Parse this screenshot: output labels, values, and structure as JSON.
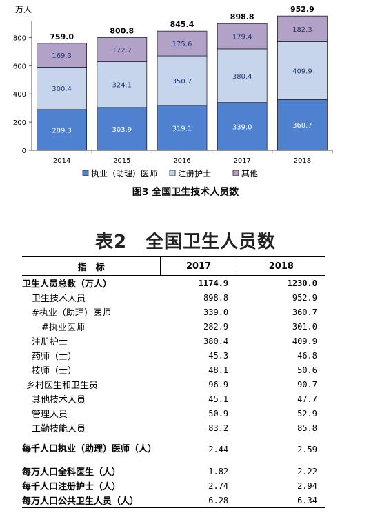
{
  "chart_data": {
    "type": "bar",
    "stacked": true,
    "categories": [
      "2014",
      "2015",
      "2016",
      "2017",
      "2018"
    ],
    "series": [
      {
        "name": "执业（助理）医师",
        "values": [
          289.3,
          303.9,
          319.1,
          339.0,
          360.7
        ],
        "color": "#4f81d1"
      },
      {
        "name": "注册护士",
        "values": [
          300.4,
          324.1,
          350.7,
          380.4,
          409.9
        ],
        "color": "#c6d4ec"
      },
      {
        "name": "其他",
        "values": [
          169.3,
          172.7,
          175.6,
          179.4,
          182.3
        ],
        "color": "#b3a2c8"
      }
    ],
    "totals": [
      "759.0",
      "800.8",
      "845.4",
      "898.8",
      "952.9"
    ],
    "value_labels": [
      [
        "289.3",
        "303.9",
        "319.1",
        "339.0",
        "360.7"
      ],
      [
        "300.4",
        "324.1",
        "350.7",
        "380.4",
        "409.9"
      ],
      [
        "169.3",
        "172.7",
        "175.6",
        "179.4",
        "182.3"
      ]
    ],
    "ylabel": "万人",
    "yticks": [
      "0",
      "200",
      "400",
      "600",
      "800"
    ],
    "ylim": [
      0,
      900
    ],
    "legend_position": "bottom",
    "grid": false
  },
  "figure_caption": "图3 全国卫生技术人员数",
  "table": {
    "title": "表2　全国卫生人员数",
    "headers": [
      "指　标",
      "2017",
      "2018"
    ],
    "rows": [
      {
        "label": "卫生人员总数（万人）",
        "v2017": "1174.9",
        "v2018": "1230.0"
      },
      {
        "label": "卫生技术人员",
        "v2017": "898.8",
        "v2018": "952.9"
      },
      {
        "label": "#执业（助理）医师",
        "v2017": "339.0",
        "v2018": "360.7"
      },
      {
        "label": "#执业医师",
        "v2017": "282.9",
        "v2018": "301.0"
      },
      {
        "label": "注册护士",
        "v2017": "380.4",
        "v2018": "409.9"
      },
      {
        "label": "药师（士）",
        "v2017": "45.3",
        "v2018": "46.8"
      },
      {
        "label": "技师（士）",
        "v2017": "48.1",
        "v2018": "50.6"
      },
      {
        "label": "乡村医生和卫生员",
        "v2017": "96.9",
        "v2018": "90.7"
      },
      {
        "label": "其他技术人员",
        "v2017": "45.1",
        "v2018": "47.7"
      },
      {
        "label": "管理人员",
        "v2017": "50.9",
        "v2018": "52.9"
      },
      {
        "label": "工勤技能人员",
        "v2017": "83.2",
        "v2018": "85.8"
      },
      {
        "label": "每千人口执业（助理）医师（人）",
        "v2017": "2.44",
        "v2018": "2.59"
      },
      {
        "label": "每万人口全科医生（人）",
        "v2017": "1.82",
        "v2018": "2.22"
      },
      {
        "label": "每千人口注册护士（人）",
        "v2017": "2.74",
        "v2018": "2.94"
      },
      {
        "label": "每万人口公共卫生人员（人）",
        "v2017": "6.28",
        "v2018": "6.34"
      }
    ]
  }
}
